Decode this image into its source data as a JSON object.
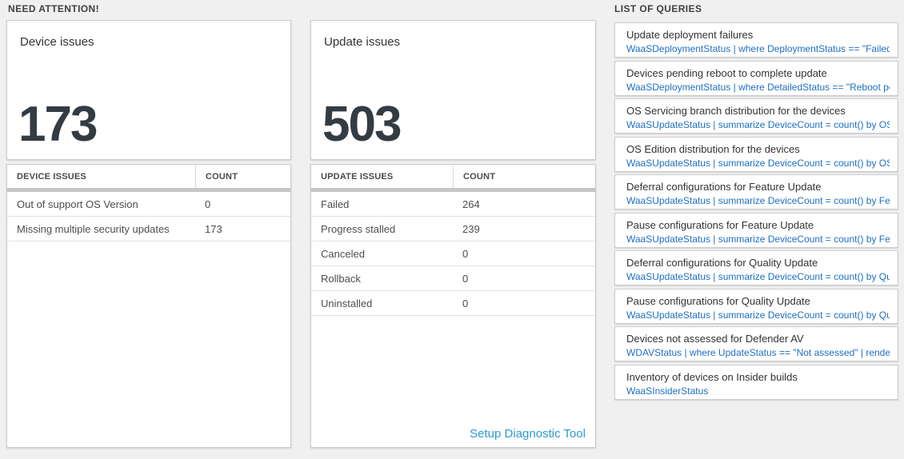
{
  "sections": {
    "need_attention_label": "NEED ATTENTION!",
    "queries_label": "LIST OF QUERIES"
  },
  "need_attention": {
    "device": {
      "title": "Device issues",
      "value": "173",
      "table": {
        "columns": [
          "DEVICE ISSUES",
          "COUNT"
        ],
        "rows": [
          {
            "label": "Out of support OS Version",
            "count": "0"
          },
          {
            "label": "Missing multiple security updates",
            "count": "173"
          }
        ]
      }
    },
    "update": {
      "title": "Update issues",
      "value": "503",
      "table": {
        "columns": [
          "UPDATE ISSUES",
          "COUNT"
        ],
        "rows": [
          {
            "label": "Failed",
            "count": "264"
          },
          {
            "label": "Progress stalled",
            "count": "239"
          },
          {
            "label": "Canceled",
            "count": "0"
          },
          {
            "label": "Rollback",
            "count": "0"
          },
          {
            "label": "Uninstalled",
            "count": "0"
          }
        ]
      },
      "footer_link": "Setup Diagnostic Tool"
    }
  },
  "query_list": {
    "items": [
      {
        "title": "Update deployment failures",
        "query": "WaaSDeploymentStatus | where DeploymentStatus == \"Failed\" |..."
      },
      {
        "title": "Devices pending reboot to complete update",
        "query": "WaaSDeploymentStatus | where DetailedStatus == \"Reboot pend..."
      },
      {
        "title": "OS Servicing branch distribution for the devices",
        "query": "WaaSUpdateStatus | summarize DeviceCount = count() by OSSer..."
      },
      {
        "title": "OS Edition distribution for the devices",
        "query": "WaaSUpdateStatus | summarize DeviceCount = count() by OSEdit..."
      },
      {
        "title": "Deferral configurations for Feature Update",
        "query": "WaaSUpdateStatus | summarize DeviceCount = count() by Featur..."
      },
      {
        "title": "Pause configurations for Feature Update",
        "query": "WaaSUpdateStatus | summarize DeviceCount = count() by Featur..."
      },
      {
        "title": "Deferral configurations for Quality Update",
        "query": "WaaSUpdateStatus | summarize DeviceCount = count() by Qualit..."
      },
      {
        "title": "Pause configurations for Quality Update",
        "query": "WaaSUpdateStatus | summarize DeviceCount = count() by Qualit..."
      },
      {
        "title": "Devices not assessed for Defender AV",
        "query": "WDAVStatus | where UpdateStatus == \"Not assessed\" | render ta..."
      },
      {
        "title": "Inventory of devices on Insider builds",
        "query": "WaaSInsiderStatus"
      }
    ]
  },
  "colors": {
    "page_background": "#f0f0f0",
    "card_background": "#ffffff",
    "card_border": "#cccccc",
    "big_number_text": "#333b43",
    "query_link_blue": "#1f6fc2",
    "setup_link_blue": "#2e9ad6",
    "table_header_bar": "#c6c6c6"
  }
}
